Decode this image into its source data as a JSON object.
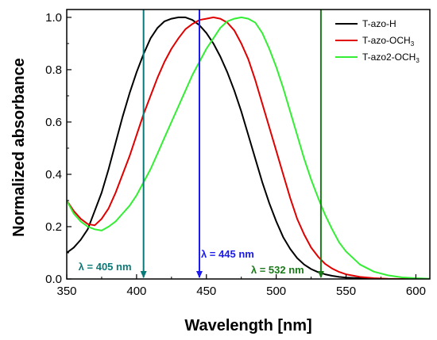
{
  "chart_data": {
    "type": "line",
    "xlabel": "Wavelength [nm]",
    "ylabel": "Normalized absorbance",
    "xlim": [
      350,
      610
    ],
    "ylim": [
      0,
      1.03
    ],
    "xticks": [
      350,
      400,
      450,
      500,
      550,
      600
    ],
    "yticks": [
      0.0,
      0.2,
      0.4,
      0.6,
      0.8,
      1.0
    ],
    "xtick_labels": [
      "350",
      "400",
      "450",
      "500",
      "550",
      "600"
    ],
    "ytick_labels": [
      "0.0",
      "0.2",
      "0.4",
      "0.6",
      "0.8",
      "1.0"
    ],
    "grid": false,
    "legend_position": "top-right",
    "series": [
      {
        "name_prefix": "T-azo-H",
        "name_subscript": "",
        "color": "#000000",
        "x": [
          350,
          355,
          360,
          365,
          370,
          375,
          380,
          385,
          390,
          395,
          400,
          405,
          410,
          415,
          420,
          425,
          430,
          435,
          440,
          445,
          450,
          455,
          460,
          465,
          470,
          475,
          480,
          485,
          490,
          495,
          500,
          505,
          510,
          515,
          520,
          525,
          530,
          535,
          540,
          545,
          550,
          560,
          570,
          580,
          590,
          600,
          610
        ],
        "y": [
          0.1,
          0.12,
          0.15,
          0.19,
          0.26,
          0.33,
          0.42,
          0.52,
          0.62,
          0.71,
          0.79,
          0.86,
          0.92,
          0.96,
          0.985,
          0.995,
          1.0,
          1.0,
          0.99,
          0.97,
          0.94,
          0.9,
          0.85,
          0.79,
          0.72,
          0.64,
          0.55,
          0.46,
          0.37,
          0.29,
          0.22,
          0.16,
          0.115,
          0.08,
          0.055,
          0.038,
          0.026,
          0.018,
          0.012,
          0.008,
          0.005,
          0.003,
          0.001,
          0.0,
          0.0,
          0.0,
          0.0
        ]
      },
      {
        "name_prefix": "T-azo-OCH",
        "name_subscript": "3",
        "color": "#e00000",
        "x": [
          350,
          355,
          360,
          365,
          370,
          375,
          380,
          385,
          390,
          395,
          400,
          405,
          410,
          415,
          420,
          425,
          430,
          435,
          440,
          445,
          450,
          455,
          460,
          465,
          470,
          475,
          480,
          485,
          490,
          495,
          500,
          505,
          510,
          515,
          520,
          525,
          530,
          535,
          540,
          545,
          550,
          560,
          570,
          580,
          590,
          600,
          610
        ],
        "y": [
          0.3,
          0.26,
          0.23,
          0.21,
          0.205,
          0.23,
          0.27,
          0.33,
          0.4,
          0.47,
          0.55,
          0.63,
          0.7,
          0.77,
          0.83,
          0.88,
          0.92,
          0.955,
          0.975,
          0.99,
          0.995,
          1.0,
          0.995,
          0.98,
          0.95,
          0.9,
          0.84,
          0.76,
          0.67,
          0.58,
          0.49,
          0.4,
          0.31,
          0.23,
          0.17,
          0.12,
          0.085,
          0.058,
          0.04,
          0.027,
          0.018,
          0.008,
          0.003,
          0.001,
          0.0,
          0.0,
          0.0
        ]
      },
      {
        "name_prefix": "T-azo2-OCH",
        "name_subscript": "3",
        "color": "#33ee33",
        "x": [
          350,
          355,
          360,
          365,
          370,
          375,
          380,
          385,
          390,
          395,
          400,
          405,
          410,
          415,
          420,
          425,
          430,
          435,
          440,
          445,
          450,
          455,
          460,
          465,
          470,
          475,
          480,
          485,
          490,
          495,
          500,
          505,
          510,
          515,
          520,
          525,
          530,
          535,
          540,
          545,
          550,
          560,
          570,
          580,
          590,
          600,
          610
        ],
        "y": [
          0.3,
          0.25,
          0.22,
          0.2,
          0.19,
          0.185,
          0.2,
          0.22,
          0.25,
          0.28,
          0.32,
          0.37,
          0.42,
          0.48,
          0.54,
          0.6,
          0.66,
          0.72,
          0.78,
          0.83,
          0.88,
          0.92,
          0.96,
          0.985,
          0.995,
          1.0,
          0.995,
          0.98,
          0.94,
          0.88,
          0.81,
          0.73,
          0.64,
          0.55,
          0.46,
          0.38,
          0.31,
          0.245,
          0.19,
          0.14,
          0.105,
          0.055,
          0.028,
          0.014,
          0.006,
          0.003,
          0.001
        ]
      }
    ],
    "annotations": [
      {
        "text": "λ = 405 nm",
        "x": 405,
        "color": "#0a7a78",
        "direction": "down"
      },
      {
        "text": "λ = 445 nm",
        "x": 445,
        "color": "#1a1aee",
        "direction": "down"
      },
      {
        "text": "λ = 532 nm",
        "x": 532,
        "color": "#1a7a1a",
        "direction": "down"
      }
    ]
  }
}
